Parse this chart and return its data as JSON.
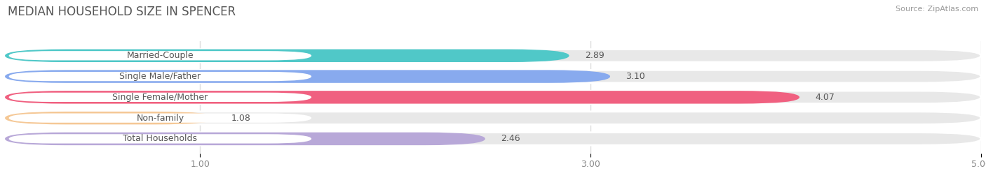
{
  "title": "MEDIAN HOUSEHOLD SIZE IN SPENCER",
  "source": "Source: ZipAtlas.com",
  "categories": [
    "Married-Couple",
    "Single Male/Father",
    "Single Female/Mother",
    "Non-family",
    "Total Households"
  ],
  "values": [
    2.89,
    3.1,
    4.07,
    1.08,
    2.46
  ],
  "colors": [
    "#50c8c8",
    "#88aaee",
    "#f06080",
    "#f5c896",
    "#b8a8d8"
  ],
  "xlim_min": 0.0,
  "xlim_max": 5.0,
  "xticks": [
    1.0,
    3.0,
    5.0
  ],
  "bar_height": 0.62,
  "background_color": "#ffffff",
  "bar_bg_color": "#e8e8e8",
  "label_pill_color": "#ffffff",
  "title_fontsize": 12,
  "label_fontsize": 9,
  "value_fontsize": 9,
  "source_fontsize": 8,
  "tick_fontsize": 9
}
